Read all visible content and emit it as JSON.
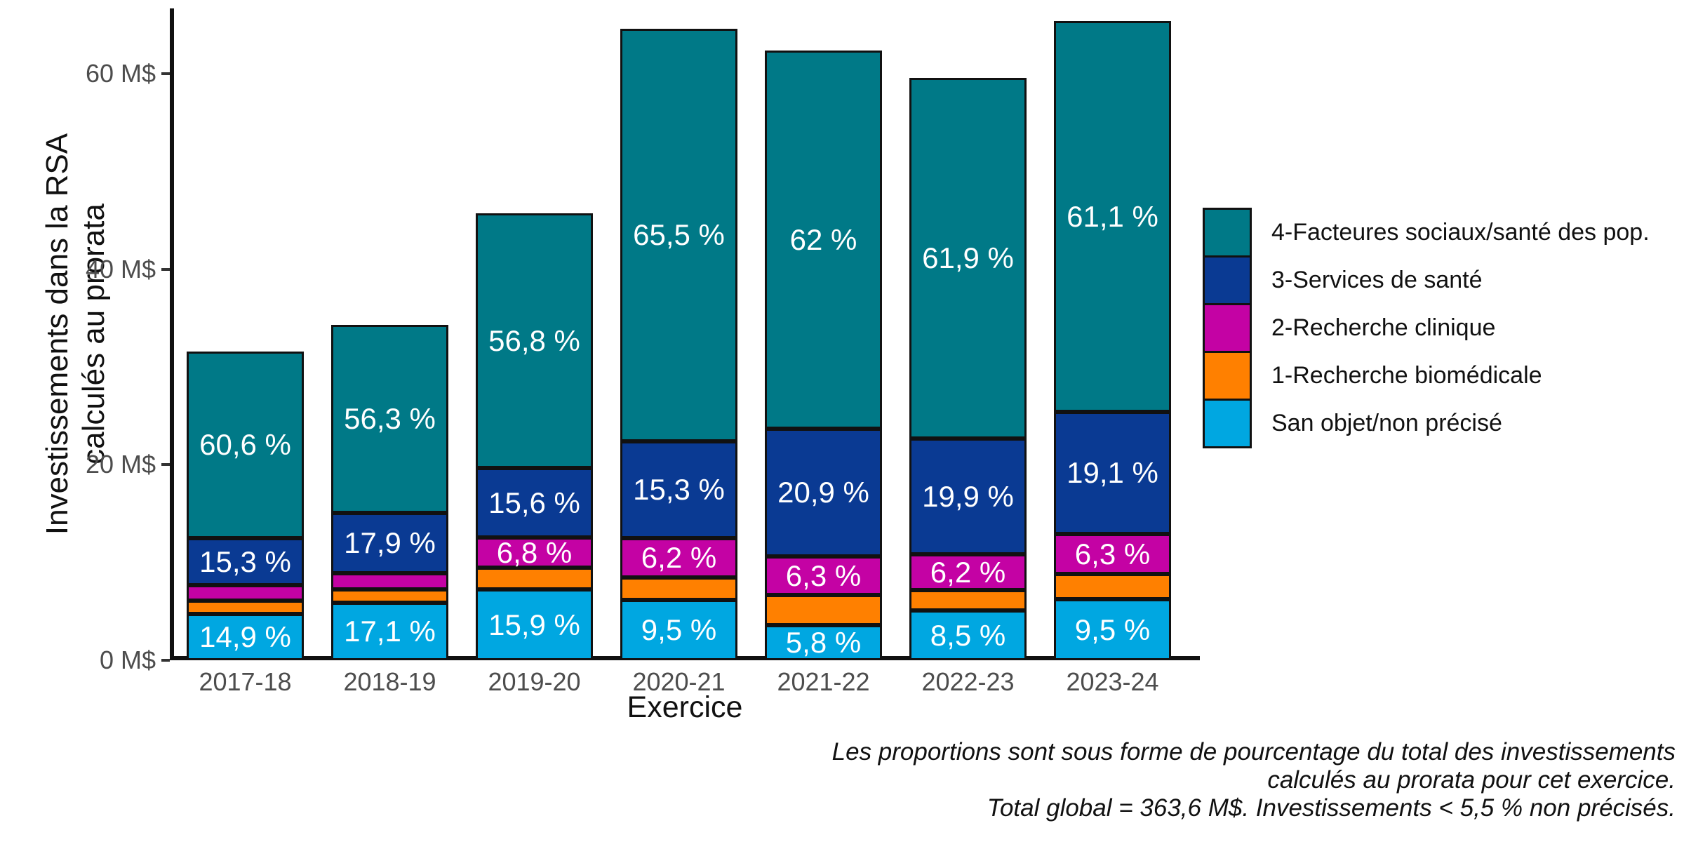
{
  "figure": {
    "background": "#ffffff",
    "stroke_color": "#111111",
    "tick_text_color": "#4d4d4d",
    "y_axis": {
      "title_lines": [
        "Investissements dans la RSA",
        "calculés au prorata"
      ],
      "ticks": [
        {
          "value": 60,
          "label": "60 M$"
        },
        {
          "value": 40,
          "label": "40 M$"
        },
        {
          "value": 20,
          "label": "20 M$"
        },
        {
          "value": 0,
          "label": "0 M$"
        }
      ]
    },
    "x_axis": {
      "title": "Exercice",
      "labels": [
        "2017-18",
        "2018-19",
        "2019-20",
        "2020-21",
        "2021-22",
        "2022-23",
        "2023-24"
      ]
    },
    "legend": {
      "position": "right",
      "items": [
        {
          "label": "4-Facteures sociaux/santé des pop.",
          "color": "#007987"
        },
        {
          "label": "3-Services de santé",
          "color": "#0a3a93"
        },
        {
          "label": "2-Recherche clinique",
          "color": "#c402a4"
        },
        {
          "label": "1-Recherche biomédicale",
          "color": "#ff8000"
        },
        {
          "label": "San objet/non précisé",
          "color": "#00a7e1"
        }
      ]
    },
    "caption_lines": [
      "Les proportions sont sous forme de pourcentage du total des investissements",
      "calculés au prorata pour cet exercice.",
      "Total global = 363,6 M$. Investissements < 5,5 % non précisés."
    ]
  },
  "chart_data": {
    "type": "bar",
    "stacked": true,
    "grid": false,
    "unit": "M$",
    "xlabel": "Exercice",
    "ylabel": "Investissements dans la RSA calculés au prorata",
    "ylim": [
      0,
      66
    ],
    "legend_position": "right",
    "categories": [
      "2017-18",
      "2018-19",
      "2019-20",
      "2020-21",
      "2021-22",
      "2022-23",
      "2023-24"
    ],
    "bar_totals_M": [
      31.6,
      34.3,
      45.7,
      64.6,
      62.4,
      59.6,
      65.4
    ],
    "total_global_M": 363.6,
    "series": [
      {
        "name": "San objet/non précisé",
        "color": "#00a7e1",
        "pct": [
          14.9,
          17.1,
          15.9,
          9.5,
          5.8,
          8.5,
          9.5
        ],
        "values_M": [
          4.7,
          5.9,
          7.3,
          6.1,
          3.6,
          5.1,
          6.2
        ],
        "labels": [
          "14,9 %",
          "17,1 %",
          "15,9 %",
          "9,5 %",
          "5,8 %",
          "8,5 %",
          "9,5 %"
        ]
      },
      {
        "name": "1-Recherche biomédicale",
        "color": "#ff8000",
        "pct": [
          4.3,
          3.9,
          4.9,
          3.5,
          5.0,
          3.5,
          4.0
        ],
        "values_M": [
          1.4,
          1.3,
          2.2,
          2.3,
          3.1,
          2.1,
          2.6
        ],
        "labels": [
          null,
          null,
          null,
          null,
          null,
          null,
          null
        ]
      },
      {
        "name": "2-Recherche clinique",
        "color": "#c402a4",
        "pct": [
          4.9,
          4.8,
          6.8,
          6.2,
          6.3,
          6.2,
          6.3
        ],
        "values_M": [
          1.5,
          1.6,
          3.1,
          4.0,
          3.9,
          3.7,
          4.1
        ],
        "labels": [
          null,
          null,
          "6,8 %",
          "6,2 %",
          "6,3 %",
          "6,2 %",
          "6,3 %"
        ]
      },
      {
        "name": "3-Services de santé",
        "color": "#0a3a93",
        "pct": [
          15.3,
          17.9,
          15.6,
          15.3,
          20.9,
          19.9,
          19.1
        ],
        "values_M": [
          4.8,
          6.1,
          7.1,
          9.9,
          13.0,
          11.9,
          12.5
        ],
        "labels": [
          "15,3 %",
          "17,9 %",
          "15,6 %",
          "15,3 %",
          "20,9 %",
          "19,9 %",
          "19,1 %"
        ]
      },
      {
        "name": "4-Facteures sociaux/santé des pop.",
        "color": "#007987",
        "pct": [
          60.6,
          56.3,
          56.8,
          65.5,
          62.0,
          61.9,
          61.1
        ],
        "values_M": [
          19.1,
          19.3,
          26.0,
          42.3,
          38.7,
          36.9,
          40.0
        ],
        "labels": [
          "60,6 %",
          "56,3 %",
          "56,8 %",
          "65,5 %",
          "62 %",
          "61,9 %",
          "61,1 %"
        ]
      }
    ],
    "note": "Les proportions sont sous forme de pourcentage du total des investissements calculés au prorata pour cet exercice. Total global = 363,6 M$. Investissements < 5,5 % non précisés."
  }
}
